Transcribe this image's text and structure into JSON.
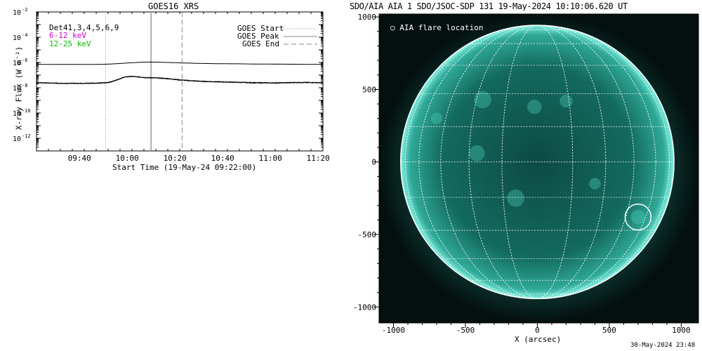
{
  "left_panel": {
    "title": "GOES16 XRS",
    "xlabel": "Start Time (19-May-24 09:22:00)",
    "ylabel": "X-ray Flux (W m⁻²)",
    "det_label": "Det41,3,4,5,6,9",
    "energy_bands": [
      {
        "label": "6-12 keV",
        "color": "#d000d0"
      },
      {
        "label": "12-25 keV",
        "color": "#00c000"
      }
    ],
    "legend": [
      {
        "label": "GOES Start",
        "style": "dotted"
      },
      {
        "label": "GOES Peak",
        "style": "solid"
      },
      {
        "label": "GOES End",
        "style": "dashed"
      }
    ]
  },
  "right_panel": {
    "title": "SDO/AIA AIA_1 SDO/JSOC-SDP 131 19-May-2024 10:10:06.620 UT",
    "legend_label": "AIA flare location",
    "xlabel": "X (arcsec)",
    "image_color": "#00e0c8",
    "flare_location": {
      "x_arcsec": 700,
      "y_arcsec": -380,
      "radius_arcsec": 90
    }
  },
  "timestamp": "30-May-2024 23:48",
  "chart_data": [
    {
      "type": "line",
      "title": "GOES16 XRS",
      "xlabel": "Start Time (19-May-24 09:22:00)",
      "ylabel": "X-ray Flux (W m⁻²)",
      "xlim_minutes": [
        0,
        120
      ],
      "x_tick_labels": [
        "09:40",
        "10:00",
        "10:20",
        "10:40",
        "11:00",
        "11:20"
      ],
      "x_tick_minutes": [
        18,
        38,
        58,
        78,
        98,
        118
      ],
      "y_scale": "log",
      "ylim_log10": [
        -13,
        -2
      ],
      "y_tick_exponents": [
        -2,
        -4,
        -6,
        -8,
        -10,
        -12
      ],
      "goes_start_minutes": 29,
      "goes_peak_minutes": 48,
      "goes_end_minutes": 61,
      "series": [
        {
          "name": "",
          "x_minutes": [
            0,
            25,
            30,
            35,
            40,
            45,
            50,
            60,
            70,
            80,
            90,
            100,
            110,
            120
          ],
          "log10_values": [
            -6.15,
            -6.15,
            -6.13,
            -6.08,
            -6.02,
            -5.97,
            -5.97,
            -6.03,
            -6.08,
            -6.1,
            -6.12,
            -6.13,
            -6.14,
            -6.15
          ]
        },
        {
          "name": "",
          "x_minutes": [
            0,
            10,
            20,
            28,
            31,
            34,
            37,
            40,
            43,
            46,
            50,
            55,
            60,
            65,
            70,
            80,
            90,
            100,
            110,
            120
          ],
          "log10_values": [
            -7.6,
            -7.65,
            -7.65,
            -7.62,
            -7.55,
            -7.35,
            -7.15,
            -7.1,
            -7.15,
            -7.2,
            -7.22,
            -7.28,
            -7.38,
            -7.45,
            -7.5,
            -7.55,
            -7.6,
            -7.62,
            -7.58,
            -7.6
          ]
        }
      ]
    },
    {
      "type": "scatter",
      "title": "SDO/AIA AIA_1 SDO/JSOC-SDP 131 19-May-2024 10:10:06.620 UT",
      "xlabel": "X (arcsec)",
      "ylabel": "",
      "xlim": [
        -1100,
        1120
      ],
      "ylim": [
        -1110,
        1020
      ],
      "x_ticks": [
        -1000,
        -500,
        0,
        500,
        1000
      ],
      "y_ticks": [
        1000,
        500,
        0,
        -500,
        -1000
      ],
      "solar_radius_arcsec": 950,
      "points": [
        {
          "x": 700,
          "y": -380,
          "label": "AIA flare location"
        }
      ]
    }
  ]
}
